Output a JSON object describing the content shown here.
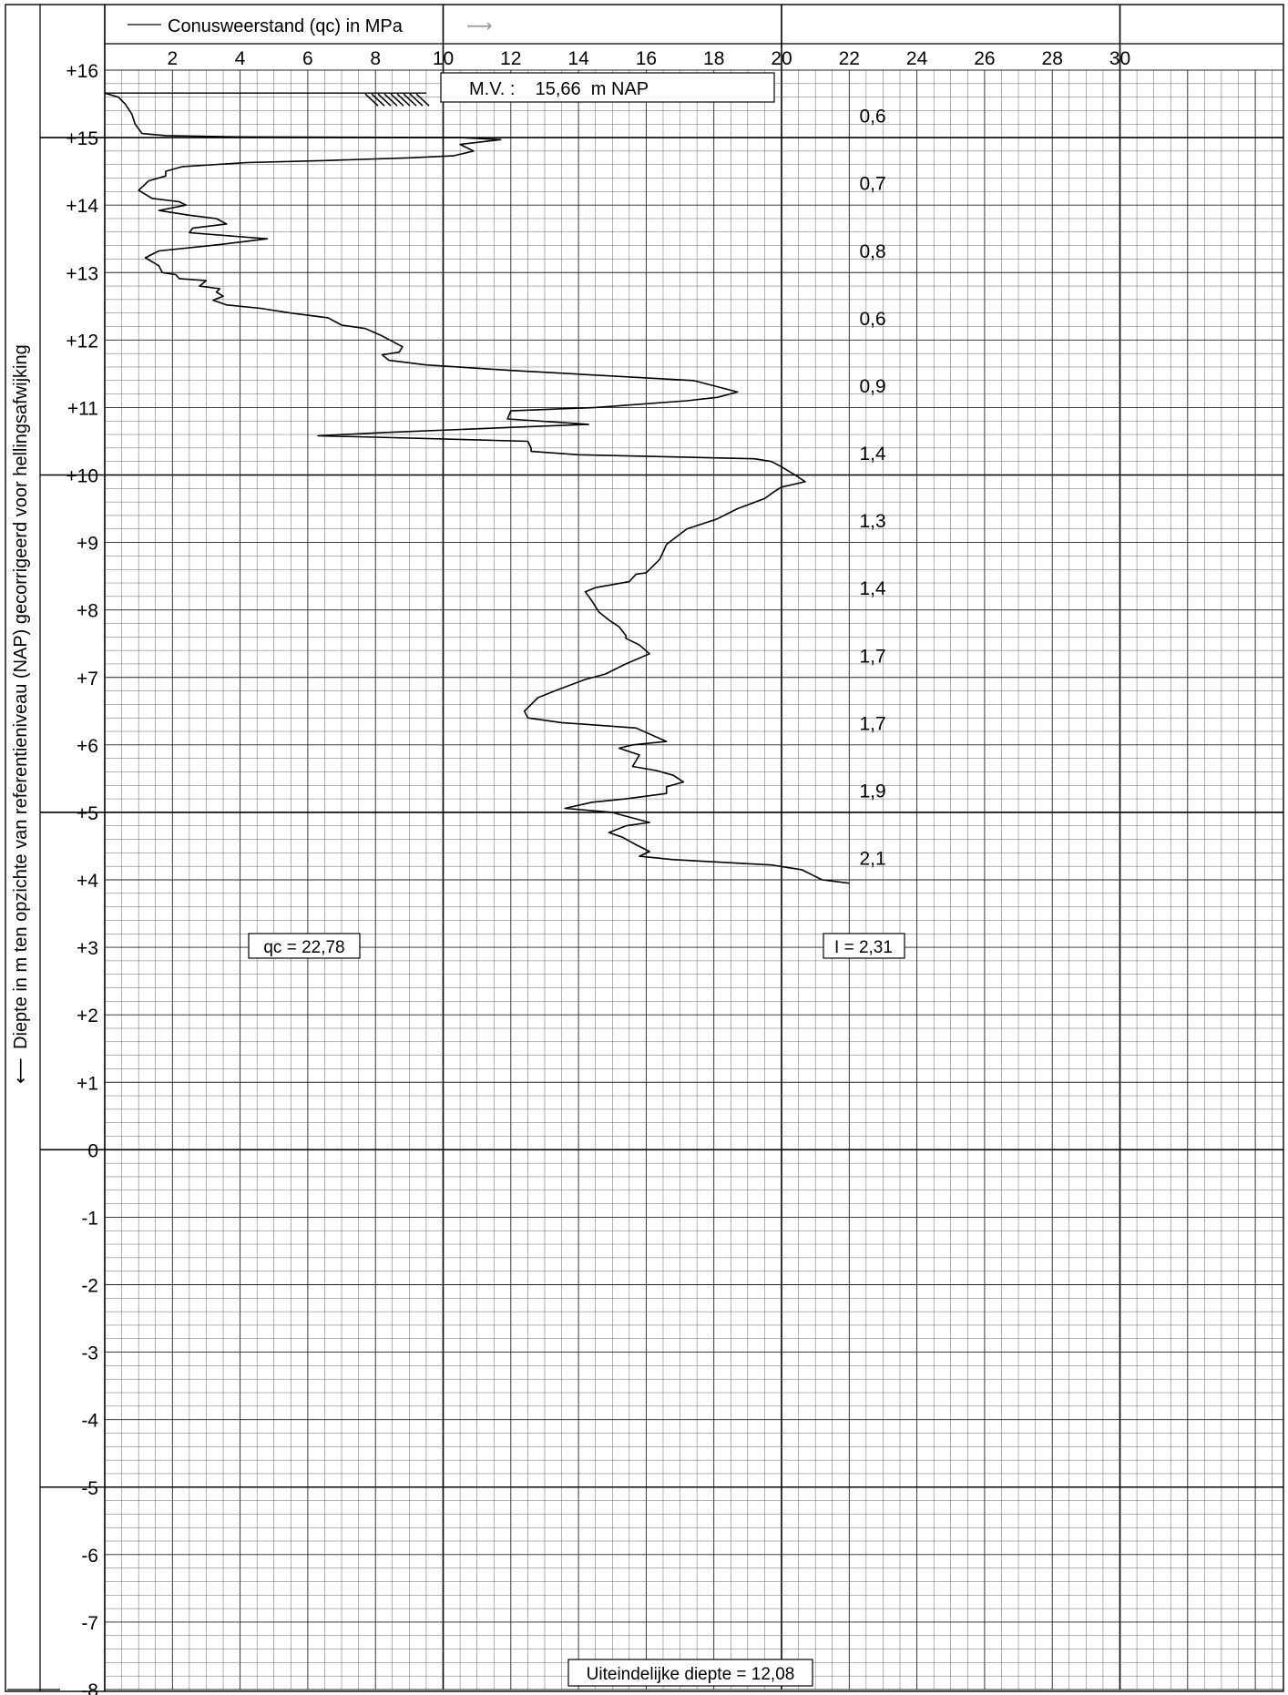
{
  "chart_data": {
    "type": "line",
    "title": "Conusweerstand (qc) in MPa",
    "ylabel": "Diepte in m ten opzichte van referentieniveau (NAP) gecorrigeerd voor hellingsafwijking",
    "title_arrow": "⟶",
    "ylabel_arrow": "⟵",
    "xlim": [
      0,
      35
    ],
    "ylim": [
      -8,
      16
    ],
    "x_ticks": [
      2,
      4,
      6,
      8,
      10,
      12,
      14,
      16,
      18,
      20,
      22,
      24,
      26,
      28,
      30
    ],
    "x_tick_labels": [
      "2",
      "4",
      "6",
      "8",
      "10",
      "12",
      "14",
      "16",
      "18",
      "20",
      "22",
      "24",
      "26",
      "28",
      "30"
    ],
    "y_ticks": [
      16,
      15,
      14,
      13,
      12,
      11,
      10,
      9,
      8,
      7,
      6,
      5,
      4,
      3,
      2,
      1,
      0,
      -1,
      -2,
      -3,
      -4,
      -5,
      -6,
      -7,
      -8
    ],
    "y_tick_labels": [
      "+16",
      "+15",
      "+14",
      "+13",
      "+12",
      "+11",
      "+10",
      "+9",
      "+8",
      "+7",
      "+6",
      "+5",
      "+4",
      "+3",
      "+2",
      "+1",
      "0",
      "-1",
      "-2",
      "-3",
      "-4",
      "-5",
      "-6",
      "-7",
      "-8"
    ],
    "grid": true,
    "ground_level_label": "M.V. :    15,66  m NAP",
    "ground_level": 15.66,
    "series": [
      {
        "values": [
          [
            0.0,
            15.66
          ],
          [
            0.4,
            15.6
          ],
          [
            0.6,
            15.5
          ],
          [
            0.8,
            15.35
          ],
          [
            0.9,
            15.2
          ],
          [
            1.1,
            15.06
          ],
          [
            1.8,
            15.03
          ],
          [
            4.0,
            15.01
          ],
          [
            10.5,
            15.0
          ],
          [
            11.7,
            14.97
          ],
          [
            10.5,
            14.9
          ],
          [
            10.9,
            14.8
          ],
          [
            10.3,
            14.73
          ],
          [
            9.0,
            14.7
          ],
          [
            6.5,
            14.66
          ],
          [
            4.2,
            14.63
          ],
          [
            2.3,
            14.57
          ],
          [
            1.8,
            14.5
          ],
          [
            1.8,
            14.43
          ],
          [
            1.3,
            14.36
          ],
          [
            1.0,
            14.22
          ],
          [
            1.4,
            14.1
          ],
          [
            2.2,
            14.05
          ],
          [
            2.4,
            14.0
          ],
          [
            1.6,
            13.92
          ],
          [
            2.5,
            13.85
          ],
          [
            3.3,
            13.8
          ],
          [
            3.6,
            13.72
          ],
          [
            2.6,
            13.66
          ],
          [
            2.5,
            13.59
          ],
          [
            4.8,
            13.5
          ],
          [
            3.3,
            13.41
          ],
          [
            1.6,
            13.32
          ],
          [
            1.2,
            13.22
          ],
          [
            1.6,
            13.1
          ],
          [
            1.7,
            13.0
          ],
          [
            2.1,
            12.97
          ],
          [
            2.2,
            12.91
          ],
          [
            3.0,
            12.88
          ],
          [
            2.8,
            12.8
          ],
          [
            3.4,
            12.76
          ],
          [
            3.3,
            12.71
          ],
          [
            3.5,
            12.65
          ],
          [
            3.2,
            12.59
          ],
          [
            3.6,
            12.52
          ],
          [
            4.6,
            12.47
          ],
          [
            5.5,
            12.4
          ],
          [
            6.6,
            12.33
          ],
          [
            7.0,
            12.22
          ],
          [
            7.7,
            12.17
          ],
          [
            8.2,
            12.06
          ],
          [
            8.8,
            11.9
          ],
          [
            8.7,
            11.82
          ],
          [
            8.2,
            11.78
          ],
          [
            8.4,
            11.7
          ],
          [
            9.5,
            11.63
          ],
          [
            12.0,
            11.55
          ],
          [
            17.4,
            11.4
          ],
          [
            18.7,
            11.23
          ],
          [
            18.1,
            11.15
          ],
          [
            17.2,
            11.1
          ],
          [
            14.5,
            11.0
          ],
          [
            12.0,
            10.95
          ],
          [
            11.9,
            10.83
          ],
          [
            14.3,
            10.75
          ],
          [
            11.8,
            10.7
          ],
          [
            8.3,
            10.63
          ],
          [
            6.3,
            10.58
          ],
          [
            8.0,
            10.56
          ],
          [
            12.5,
            10.5
          ],
          [
            12.6,
            10.4
          ],
          [
            12.6,
            10.35
          ],
          [
            14.0,
            10.3
          ],
          [
            19.2,
            10.24
          ],
          [
            19.7,
            10.2
          ],
          [
            20.0,
            10.12
          ],
          [
            20.4,
            10.0
          ],
          [
            20.7,
            9.9
          ],
          [
            20.0,
            9.82
          ],
          [
            19.8,
            9.76
          ],
          [
            19.5,
            9.65
          ],
          [
            18.7,
            9.5
          ],
          [
            18.1,
            9.35
          ],
          [
            17.2,
            9.2
          ],
          [
            16.6,
            8.97
          ],
          [
            16.4,
            8.75
          ],
          [
            16.0,
            8.55
          ],
          [
            15.7,
            8.53
          ],
          [
            15.5,
            8.42
          ],
          [
            14.5,
            8.33
          ],
          [
            14.2,
            8.27
          ],
          [
            14.4,
            8.13
          ],
          [
            14.6,
            7.97
          ],
          [
            14.9,
            7.85
          ],
          [
            15.2,
            7.75
          ],
          [
            15.4,
            7.62
          ],
          [
            15.4,
            7.58
          ],
          [
            15.8,
            7.48
          ],
          [
            16.1,
            7.35
          ],
          [
            15.4,
            7.2
          ],
          [
            14.8,
            7.05
          ],
          [
            14.2,
            6.97
          ],
          [
            13.4,
            6.82
          ],
          [
            12.8,
            6.7
          ],
          [
            12.6,
            6.6
          ],
          [
            12.4,
            6.5
          ],
          [
            12.5,
            6.4
          ],
          [
            13.5,
            6.33
          ],
          [
            15.7,
            6.25
          ],
          [
            16.6,
            6.05
          ],
          [
            15.6,
            6.0
          ],
          [
            15.2,
            5.95
          ],
          [
            15.8,
            5.85
          ],
          [
            15.6,
            5.68
          ],
          [
            16.3,
            5.62
          ],
          [
            16.8,
            5.55
          ],
          [
            17.1,
            5.45
          ],
          [
            16.6,
            5.38
          ],
          [
            16.6,
            5.28
          ],
          [
            15.4,
            5.2
          ],
          [
            14.4,
            5.15
          ],
          [
            13.6,
            5.06
          ],
          [
            15.0,
            5.0
          ],
          [
            15.2,
            4.97
          ],
          [
            16.1,
            4.85
          ],
          [
            15.4,
            4.8
          ],
          [
            14.9,
            4.7
          ],
          [
            15.3,
            4.63
          ],
          [
            15.7,
            4.52
          ],
          [
            16.1,
            4.42
          ],
          [
            15.8,
            4.35
          ],
          [
            16.8,
            4.3
          ],
          [
            19.7,
            4.22
          ],
          [
            20.6,
            4.15
          ],
          [
            21.0,
            4.05
          ],
          [
            21.2,
            4.0
          ],
          [
            22.0,
            3.95
          ]
        ]
      }
    ],
    "friction_ratio_values": [
      {
        "y": 15.33,
        "label": "0,6"
      },
      {
        "y": 14.33,
        "label": "0,7"
      },
      {
        "y": 13.33,
        "label": "0,8"
      },
      {
        "y": 12.33,
        "label": "0,6"
      },
      {
        "y": 11.33,
        "label": "0,9"
      },
      {
        "y": 10.33,
        "label": "1,4"
      },
      {
        "y": 9.33,
        "label": "1,3"
      },
      {
        "y": 8.33,
        "label": "1,4"
      },
      {
        "y": 7.33,
        "label": "1,7"
      },
      {
        "y": 6.33,
        "label": "1,7"
      },
      {
        "y": 5.33,
        "label": "1,9"
      },
      {
        "y": 4.33,
        "label": "2,1"
      }
    ],
    "annotations": {
      "qc_max": "qc = 22,78",
      "i_max": "I = 2,31",
      "final_depth": "Uiteindelijke diepte = 12,08"
    }
  }
}
